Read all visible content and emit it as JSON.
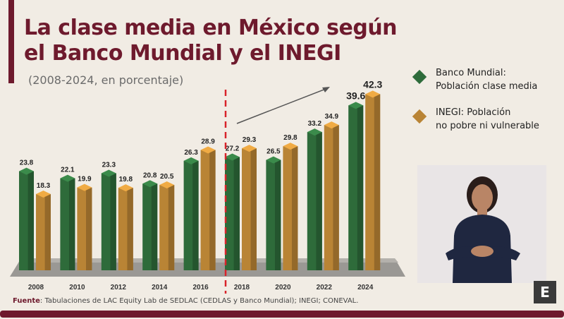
{
  "header": {
    "title_line1": "La clase media en México según",
    "title_line2": "el Banco Mundial y el INEGI",
    "subtitle": "(2008-2024, en porcentaje)"
  },
  "legend": [
    {
      "line1": "Banco Mundial:",
      "line2": "Población clase media",
      "color": "#2e6b3a"
    },
    {
      "line1": "INEGI: Población",
      "line2": "no pobre ni vulnerable",
      "color": "#b98435"
    }
  ],
  "source": {
    "label": "Fuente",
    "text": ": Tabulaciones de LAC Equity Lab de SEDLAC (CEDLAS y Banco Mundial); INEGI; CONEVAL."
  },
  "logo": {
    "letter": "E"
  },
  "chart_data": {
    "type": "bar",
    "categories": [
      "2008",
      "2010",
      "2012",
      "2014",
      "2016",
      "2018",
      "2020",
      "2022",
      "2024"
    ],
    "series": [
      {
        "name": "Banco Mundial: Población clase media",
        "values": [
          23.8,
          22.1,
          23.3,
          20.8,
          26.3,
          27.2,
          26.5,
          33.2,
          39.6
        ],
        "color": "#2e6b3a"
      },
      {
        "name": "INEGI: Población no pobre ni vulnerable",
        "values": [
          18.3,
          19.9,
          19.8,
          20.5,
          28.9,
          29.3,
          29.8,
          34.9,
          42.3
        ],
        "color": "#b98435"
      }
    ],
    "ylim": [
      0,
      45
    ],
    "grid": false,
    "legend_placement": "right",
    "annotations": [
      "dashed vertical separator between 2016 and 2018",
      "upward trend arrow 2018-2024"
    ]
  }
}
